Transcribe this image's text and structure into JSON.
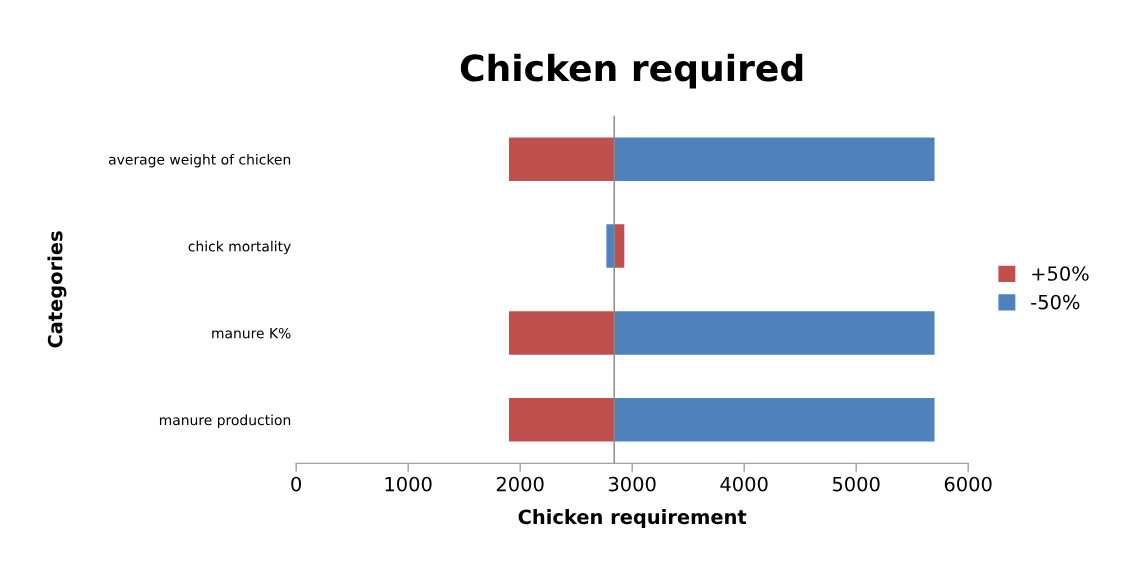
{
  "chart_data": {
    "type": "bar",
    "orientation": "horizontal",
    "title": "Chicken required",
    "xlabel": "Chicken requirement",
    "ylabel": "Categories",
    "categories": [
      "average weight of chicken",
      "chick mortality",
      "manure K%",
      "manure production"
    ],
    "series": [
      {
        "name": "+50%",
        "color": "#c0504d",
        "base": [
          1900,
          2840,
          1900,
          1900
        ],
        "values": [
          940,
          90,
          940,
          940
        ]
      },
      {
        "name": "-50%",
        "color": "#4f81bd",
        "base": [
          2840,
          2770,
          2840,
          2840
        ],
        "values": [
          2860,
          70,
          2860,
          2860
        ]
      }
    ],
    "xlim": [
      0,
      6000
    ],
    "xticks": [
      0,
      1000,
      2000,
      3000,
      4000,
      5000,
      6000
    ],
    "ref_lines": [
      {
        "axis": "x",
        "value": 2840,
        "label": null,
        "color": "#868686"
      }
    ],
    "legend": "right",
    "grid": false
  }
}
